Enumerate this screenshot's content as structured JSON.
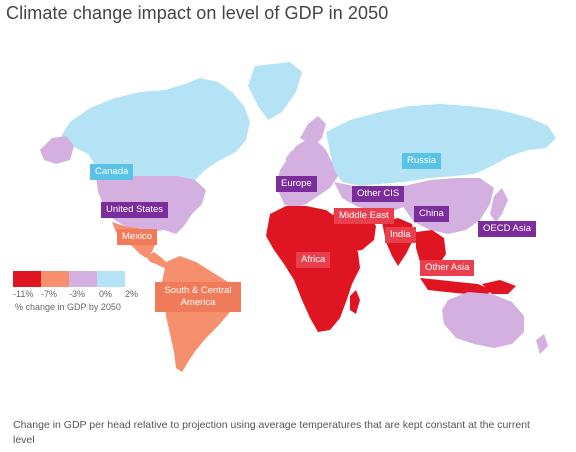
{
  "title": "Climate change impact on level of GDP in 2050",
  "colors": {
    "ocean": "#ffffff",
    "gain": "#b3e3f4",
    "mild_loss": "#d4b0e0",
    "moderate_loss": "#f58f6e",
    "severe_loss": "#e01522",
    "label_blue": "#5bc2e7",
    "label_purple": "#7b2d9b",
    "label_red": "#e8404c",
    "label_orange": "#f07b5a"
  },
  "regions": [
    {
      "id": "canada",
      "label": "Canada",
      "style": "blue"
    },
    {
      "id": "united_states",
      "label": "United States",
      "style": "purple"
    },
    {
      "id": "mexico",
      "label": "Mexico",
      "style": "orange"
    },
    {
      "id": "south_central_america",
      "label": "South & Central America",
      "style": "orange"
    },
    {
      "id": "europe",
      "label": "Europe",
      "style": "purple"
    },
    {
      "id": "russia",
      "label": "Russia",
      "style": "blue"
    },
    {
      "id": "other_cis",
      "label": "Other CIS",
      "style": "purple"
    },
    {
      "id": "middle_east",
      "label": "Middle East",
      "style": "red"
    },
    {
      "id": "china",
      "label": "China",
      "style": "purple"
    },
    {
      "id": "oecd_asia",
      "label": "OECD Asia",
      "style": "purple"
    },
    {
      "id": "india",
      "label": "India",
      "style": "red"
    },
    {
      "id": "africa",
      "label": "Africa",
      "style": "red"
    },
    {
      "id": "other_asia",
      "label": "Other Asia",
      "style": "red"
    }
  ],
  "legend": {
    "ticks": [
      "-11%",
      "-7%",
      "-3%",
      "0%",
      "2%"
    ],
    "caption": "% change in GDP by 2050",
    "colors": [
      "#e01522",
      "#f58f6e",
      "#d4b0e0",
      "#b3e3f4"
    ]
  },
  "footnote": "Change in GDP per head relative to projection using average temperatures that are kept constant at the current level"
}
